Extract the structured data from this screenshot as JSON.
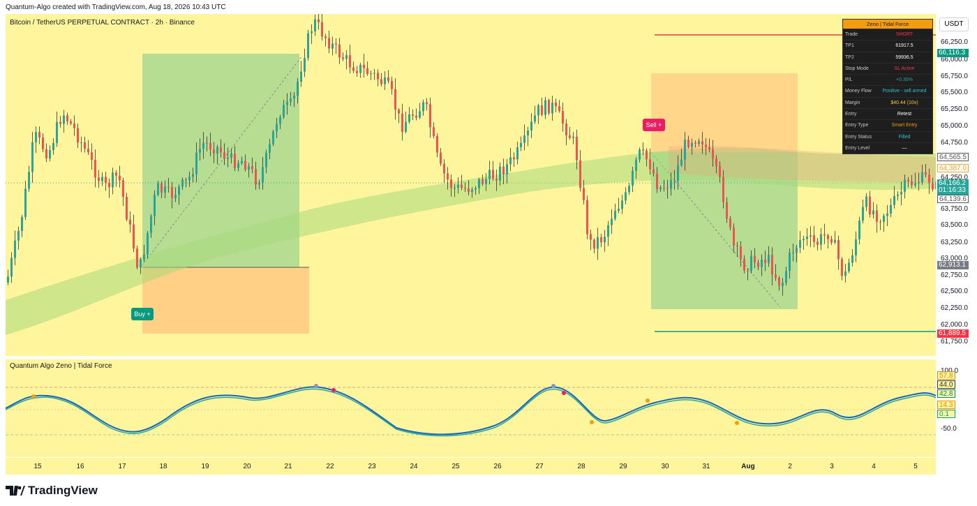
{
  "header": {
    "credit": "Quantum-Algo created with TradingView.com, Aug 18, 2026 10:43 UTC"
  },
  "symbol": {
    "title": "Bitcoin / TetherUS PERPETUAL CONTRACT · 2h · Binance"
  },
  "currency_button": "USDT",
  "price_axis": {
    "ticks": [
      "66,250.0",
      "66,000.0",
      "65,750.0",
      "65,500.0",
      "65,250.0",
      "65,000.0",
      "64,750.0",
      "64,250.0",
      "63,750.0",
      "63,500.0",
      "63,250.0",
      "63,000.0",
      "62,750.0",
      "62,500.0",
      "62,250.0",
      "62,000.0",
      "61,750.0"
    ],
    "badges": [
      {
        "text": "66,116.3",
        "bg": "#089981",
        "fg": "#ffffff"
      },
      {
        "text": "64,565.5",
        "bg": "#ffffff",
        "fg": "#555555"
      },
      {
        "text": "64,387.0",
        "bg": "#ffffff",
        "fg": "#f0a030"
      },
      {
        "text": "64,166.2",
        "bg": "#26a69a",
        "fg": "#ffffff"
      },
      {
        "text": "01:16:33",
        "bg": "#26a69a",
        "fg": "#ffffff"
      },
      {
        "text": "64,139.6",
        "bg": "#ffffff",
        "fg": "#555555"
      },
      {
        "text": "62,913.1",
        "bg": "#787b86",
        "fg": "#ffffff"
      },
      {
        "text": "61,889.5",
        "bg": "#f23645",
        "fg": "#ffffff"
      }
    ]
  },
  "osc_axis": {
    "ticks": [
      "100.0",
      "-50.0"
    ],
    "badges": [
      {
        "text": "57.8",
        "bg": "#fff59d",
        "fg": "#d08a1a"
      },
      {
        "text": "44.0",
        "bg": "#fff59d",
        "fg": "#333333"
      },
      {
        "text": "42.8",
        "bg": "#fff59d",
        "fg": "#00897b"
      },
      {
        "text": "14.3",
        "bg": "#fff59d",
        "fg": "#f08a00"
      },
      {
        "text": "0.1",
        "bg": "#fff59d",
        "fg": "#00a080"
      }
    ]
  },
  "time_axis": [
    "15",
    "16",
    "17",
    "18",
    "19",
    "20",
    "21",
    "22",
    "23",
    "24",
    "25",
    "26",
    "27",
    "28",
    "29",
    "30",
    "31",
    "Aug",
    "2",
    "3",
    "4",
    "5"
  ],
  "signals": {
    "buy": "Buy +",
    "sell": "Sell +"
  },
  "indicator": {
    "title": "Quantum Algo Zeno | Tidal Force"
  },
  "panel": {
    "title": "Zeno | Tidal Force",
    "rows": [
      {
        "k": "Trade",
        "v": "SHORT",
        "color": "#f23645"
      },
      {
        "k": "TP1",
        "v": "61917.5",
        "color": "#ffffff"
      },
      {
        "k": "TP2",
        "v": "59936.5",
        "color": "#ffffff"
      },
      {
        "k": "Stop Mode",
        "v": "SL Active",
        "color": "#f23645"
      },
      {
        "k": "P/L",
        "v": "+0.35%",
        "color": "#26a69a"
      },
      {
        "k": "Money Flow",
        "v": "Positive - sell armed",
        "color": "#26c6da"
      },
      {
        "k": "Margin",
        "v": "$40.44 (10x)",
        "color": "#f5c542"
      },
      {
        "k": "Entry",
        "v": "Retest",
        "color": "#ffffff"
      },
      {
        "k": "Entry Type",
        "v": "Smart Entry",
        "color": "#f39c12"
      },
      {
        "k": "Entry Status",
        "v": "Filled",
        "color": "#26c6da"
      },
      {
        "k": "Entry Level",
        "v": "—",
        "color": "#ffffff"
      }
    ]
  },
  "footer": {
    "brand": "TradingView"
  },
  "colors": {
    "bg": "#fff59d",
    "up": "#26a69a",
    "down": "#ef5350"
  }
}
